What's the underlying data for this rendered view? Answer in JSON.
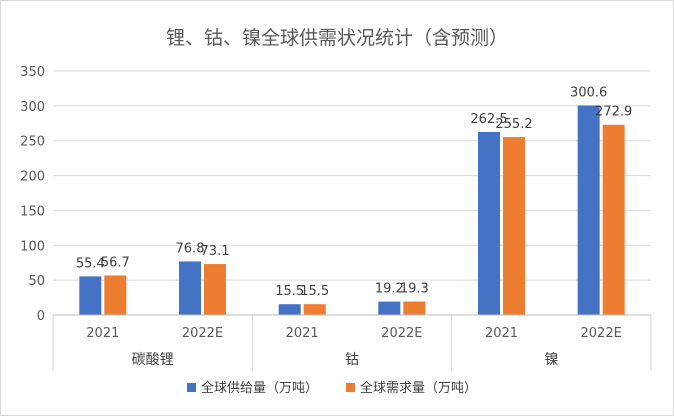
{
  "chart_data": {
    "type": "bar",
    "title": "锂、钴、镍全球供需状况统计（含预测）",
    "groups": [
      {
        "name": "碳酸锂",
        "years": [
          "2021",
          "2022E"
        ]
      },
      {
        "name": "钴",
        "years": [
          "2021",
          "2022E"
        ]
      },
      {
        "name": "镍",
        "years": [
          "2021",
          "2022E"
        ]
      }
    ],
    "series": [
      {
        "name": "全球供给量（万吨）",
        "color": "#4472c4",
        "values": [
          55.4,
          76.8,
          15.5,
          19.2,
          262.5,
          300.6
        ]
      },
      {
        "name": "全球需求量（万吨）",
        "color": "#ed7d31",
        "values": [
          56.7,
          73.1,
          15.5,
          19.3,
          255.2,
          272.9
        ]
      }
    ],
    "value_labels": {
      "supply": [
        "55.4",
        "76.8",
        "15.5",
        "19.2",
        "262.5",
        "300.6"
      ],
      "demand": [
        "56.7",
        "73.1",
        "15.5",
        "19.3",
        "255.2",
        "272.9"
      ]
    },
    "yticks": [
      "0",
      "50",
      "100",
      "150",
      "200",
      "250",
      "300",
      "350"
    ],
    "ylim": [
      0,
      350
    ],
    "xlabel": "",
    "ylabel": "",
    "grid": true,
    "legend_position": "bottom"
  }
}
